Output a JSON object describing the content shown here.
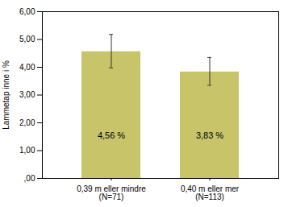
{
  "chart_data": {
    "type": "bar",
    "categories": [
      "0,39 m eller mindre\n(N=71)",
      "0,40 m eller mer\n(N=113)"
    ],
    "values": [
      4.56,
      3.83
    ],
    "value_labels": [
      "4,56 %",
      "3,83 %"
    ],
    "data_labels": true,
    "errors_upper": [
      0.62,
      0.52
    ],
    "errors_lower": [
      0.58,
      0.48
    ],
    "color": "#C8C46A",
    "ylabel": "Lammetap inne i %",
    "ylim": [
      0,
      6.0
    ],
    "yticks": [
      {
        "value": 0.0,
        "label": ",00"
      },
      {
        "value": 1.0,
        "label": "1,00"
      },
      {
        "value": 2.0,
        "label": "2,00"
      },
      {
        "value": 3.0,
        "label": "3,00"
      },
      {
        "value": 4.0,
        "label": "4,00"
      },
      {
        "value": 5.0,
        "label": "5,00"
      },
      {
        "value": 6.0,
        "label": "6,00"
      }
    ],
    "grid": false
  }
}
